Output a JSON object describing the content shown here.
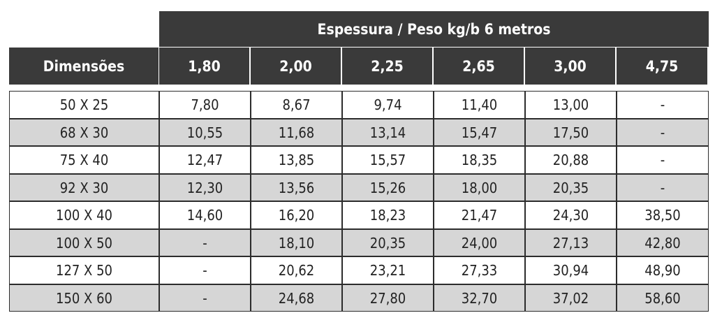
{
  "table": {
    "group_header": "Espessura / Peso kg/b 6 metros",
    "row_header": "Dimensões",
    "thickness_columns": [
      "1,80",
      "2,00",
      "2,25",
      "2,65",
      "3,00",
      "4,75"
    ],
    "rows": [
      {
        "dimension": "50 X 25",
        "values": [
          "7,80",
          "8,67",
          "9,74",
          "11,40",
          "13,00",
          "-"
        ]
      },
      {
        "dimension": "68 X 30",
        "values": [
          "10,55",
          "11,68",
          "13,14",
          "15,47",
          "17,50",
          "-"
        ]
      },
      {
        "dimension": "75 X 40",
        "values": [
          "12,47",
          "13,85",
          "15,57",
          "18,35",
          "20,88",
          "-"
        ]
      },
      {
        "dimension": "92 X 30",
        "values": [
          "12,30",
          "13,56",
          "15,26",
          "18,00",
          "20,35",
          "-"
        ]
      },
      {
        "dimension": "100 X 40",
        "values": [
          "14,60",
          "16,20",
          "18,23",
          "21,47",
          "24,30",
          "38,50"
        ]
      },
      {
        "dimension": "100 X 50",
        "values": [
          "-",
          "18,10",
          "20,35",
          "24,00",
          "27,13",
          "42,80"
        ]
      },
      {
        "dimension": "127 X 50",
        "values": [
          "-",
          "20,62",
          "23,21",
          "27,33",
          "30,94",
          "48,90"
        ]
      },
      {
        "dimension": "150 X 60",
        "values": [
          "-",
          "24,68",
          "27,80",
          "32,70",
          "37,02",
          "58,60"
        ]
      }
    ]
  },
  "colors": {
    "header_background": "#3a3a3a",
    "header_text": "#ffffff",
    "row_alternate": "#d6d6d6",
    "row_default": "#ffffff",
    "border": "#2c2c2c"
  }
}
